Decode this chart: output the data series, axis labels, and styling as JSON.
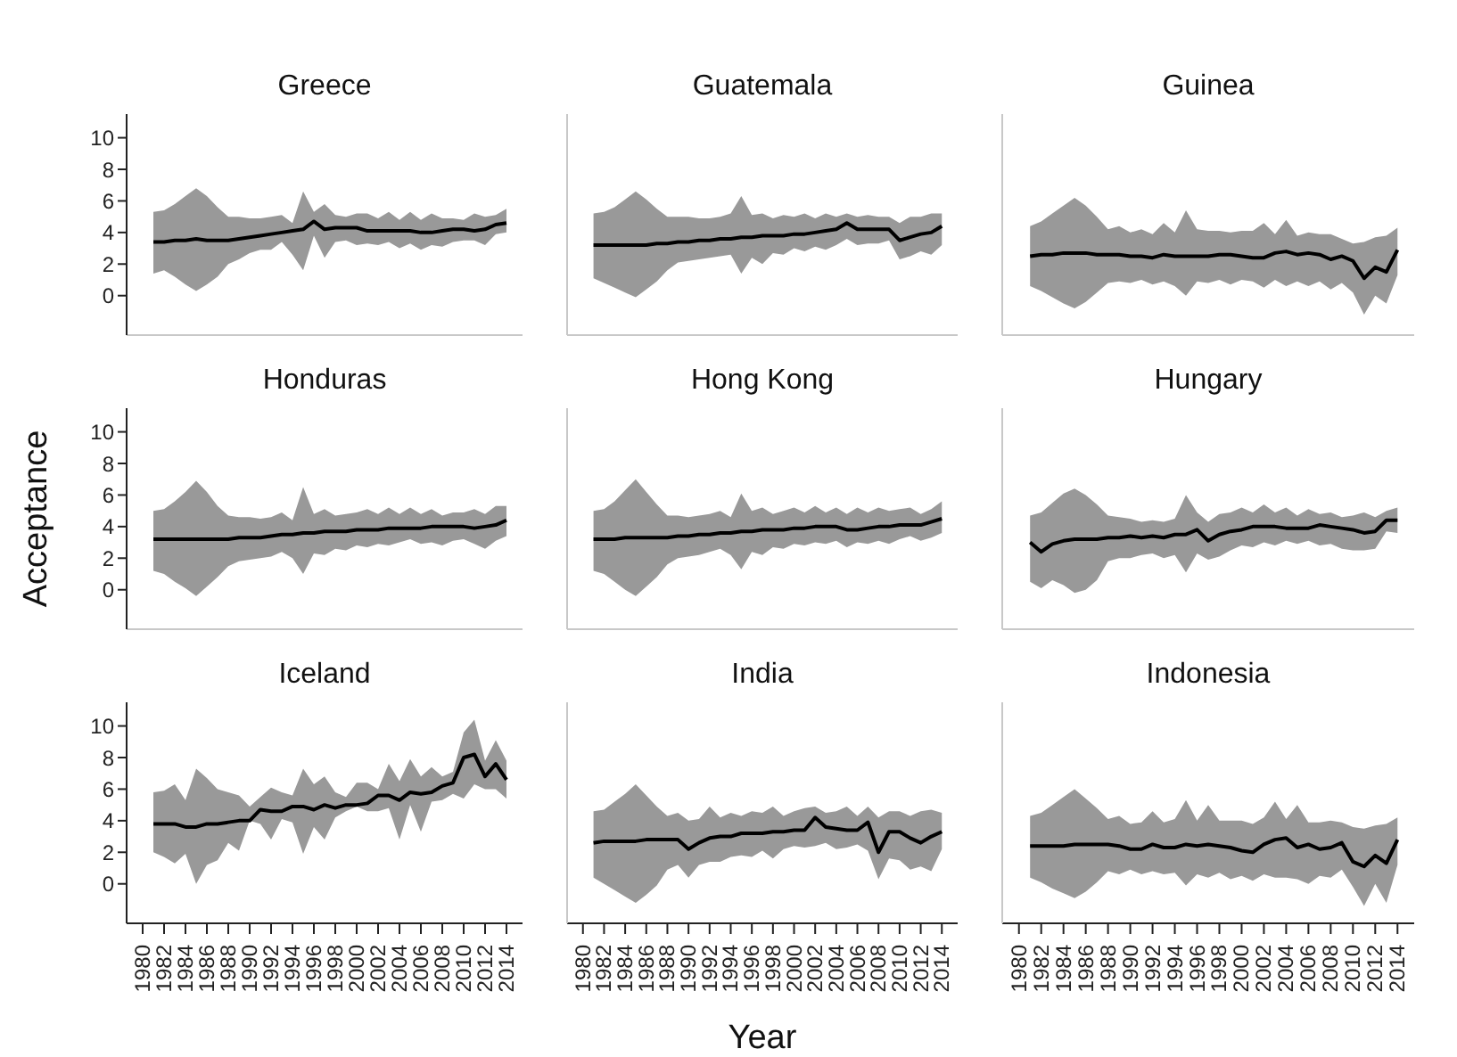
{
  "chart_data": [
    {
      "type": "line",
      "title": "Greece",
      "tick_labels": "y",
      "x": [
        1981,
        1982,
        1983,
        1984,
        1985,
        1986,
        1987,
        1988,
        1989,
        1990,
        1991,
        1992,
        1993,
        1994,
        1995,
        1996,
        1997,
        1998,
        1999,
        2000,
        2001,
        2002,
        2003,
        2004,
        2005,
        2006,
        2007,
        2008,
        2009,
        2010,
        2011,
        2012,
        2013,
        2014
      ],
      "xlim": [
        1978.5,
        2015.5
      ],
      "xticks": [
        1980,
        1982,
        1984,
        1986,
        1988,
        1990,
        1992,
        1994,
        1996,
        1998,
        2000,
        2002,
        2004,
        2006,
        2008,
        2010,
        2012,
        2014
      ],
      "ylim": [
        -2.5,
        11.5
      ],
      "yticks": [
        0,
        2,
        4,
        6,
        8,
        10
      ],
      "series": [
        {
          "color": "#000000",
          "values": [
            3.4,
            3.4,
            3.5,
            3.5,
            3.6,
            3.5,
            3.5,
            3.5,
            3.6,
            3.7,
            3.8,
            3.9,
            4.0,
            4.1,
            4.2,
            4.7,
            4.2,
            4.3,
            4.3,
            4.3,
            4.1,
            4.1,
            4.1,
            4.1,
            4.1,
            4.0,
            4.0,
            4.1,
            4.2,
            4.2,
            4.1,
            4.2,
            4.5,
            4.6
          ],
          "upper": [
            5.3,
            5.4,
            5.8,
            6.3,
            6.8,
            6.3,
            5.6,
            5.0,
            5.0,
            4.9,
            4.9,
            5.0,
            5.1,
            4.6,
            6.6,
            5.3,
            5.8,
            5.1,
            5.0,
            5.2,
            5.2,
            4.9,
            5.3,
            4.8,
            5.3,
            4.8,
            5.2,
            4.9,
            4.9,
            4.8,
            5.2,
            5.0,
            5.1,
            5.5
          ],
          "lower": [
            1.4,
            1.6,
            1.2,
            0.7,
            0.3,
            0.7,
            1.2,
            2.0,
            2.3,
            2.7,
            2.9,
            2.9,
            3.4,
            2.6,
            1.6,
            3.8,
            2.4,
            3.4,
            3.5,
            3.2,
            3.3,
            3.2,
            3.4,
            3.0,
            3.3,
            2.9,
            3.2,
            3.1,
            3.4,
            3.5,
            3.5,
            3.2,
            3.9,
            4.0
          ]
        }
      ]
    },
    {
      "type": "line",
      "title": "Guatemala",
      "tick_labels": false,
      "x": [
        1981,
        1982,
        1983,
        1984,
        1985,
        1986,
        1987,
        1988,
        1989,
        1990,
        1991,
        1992,
        1993,
        1994,
        1995,
        1996,
        1997,
        1998,
        1999,
        2000,
        2001,
        2002,
        2003,
        2004,
        2005,
        2006,
        2007,
        2008,
        2009,
        2010,
        2011,
        2012,
        2013,
        2014
      ],
      "xlim": [
        1978.5,
        2015.5
      ],
      "xticks": [
        1980,
        1982,
        1984,
        1986,
        1988,
        1990,
        1992,
        1994,
        1996,
        1998,
        2000,
        2002,
        2004,
        2006,
        2008,
        2010,
        2012,
        2014
      ],
      "ylim": [
        -2.5,
        11.5
      ],
      "yticks": [
        0,
        2,
        4,
        6,
        8,
        10
      ],
      "series": [
        {
          "color": "#000000",
          "values": [
            3.2,
            3.2,
            3.2,
            3.2,
            3.2,
            3.2,
            3.3,
            3.3,
            3.4,
            3.4,
            3.5,
            3.5,
            3.6,
            3.6,
            3.7,
            3.7,
            3.8,
            3.8,
            3.8,
            3.9,
            3.9,
            4.0,
            4.1,
            4.2,
            4.6,
            4.2,
            4.2,
            4.2,
            4.2,
            3.5,
            3.7,
            3.9,
            4.0,
            4.4
          ],
          "upper": [
            5.2,
            5.3,
            5.6,
            6.1,
            6.6,
            6.1,
            5.5,
            5.0,
            5.0,
            5.0,
            4.9,
            4.9,
            5.0,
            5.2,
            6.3,
            5.1,
            5.2,
            4.9,
            5.1,
            5.0,
            5.2,
            4.9,
            5.2,
            5.0,
            5.2,
            5.0,
            5.1,
            5.0,
            5.0,
            4.6,
            5.0,
            5.0,
            5.2,
            5.2
          ],
          "lower": [
            1.1,
            0.8,
            0.5,
            0.2,
            -0.1,
            0.4,
            0.9,
            1.6,
            2.1,
            2.2,
            2.3,
            2.4,
            2.5,
            2.6,
            1.4,
            2.4,
            2.0,
            2.7,
            2.6,
            3.0,
            2.8,
            3.1,
            2.9,
            3.2,
            3.6,
            3.2,
            3.3,
            3.3,
            3.5,
            2.3,
            2.5,
            2.8,
            2.6,
            3.2
          ]
        }
      ]
    },
    {
      "type": "line",
      "title": "Guinea",
      "tick_labels": false,
      "x": [
        1981,
        1982,
        1983,
        1984,
        1985,
        1986,
        1987,
        1988,
        1989,
        1990,
        1991,
        1992,
        1993,
        1994,
        1995,
        1996,
        1997,
        1998,
        1999,
        2000,
        2001,
        2002,
        2003,
        2004,
        2005,
        2006,
        2007,
        2008,
        2009,
        2010,
        2011,
        2012,
        2013,
        2014
      ],
      "xlim": [
        1978.5,
        2015.5
      ],
      "xticks": [
        1980,
        1982,
        1984,
        1986,
        1988,
        1990,
        1992,
        1994,
        1996,
        1998,
        2000,
        2002,
        2004,
        2006,
        2008,
        2010,
        2012,
        2014
      ],
      "ylim": [
        -2.5,
        11.5
      ],
      "yticks": [
        0,
        2,
        4,
        6,
        8,
        10
      ],
      "series": [
        {
          "color": "#000000",
          "values": [
            2.5,
            2.6,
            2.6,
            2.7,
            2.7,
            2.7,
            2.6,
            2.6,
            2.6,
            2.5,
            2.5,
            2.4,
            2.6,
            2.5,
            2.5,
            2.5,
            2.5,
            2.6,
            2.6,
            2.5,
            2.4,
            2.4,
            2.7,
            2.8,
            2.6,
            2.7,
            2.6,
            2.3,
            2.5,
            2.2,
            1.1,
            1.8,
            1.5,
            2.9
          ],
          "upper": [
            4.4,
            4.7,
            5.2,
            5.7,
            6.2,
            5.7,
            5.0,
            4.2,
            4.4,
            4.0,
            4.2,
            3.9,
            4.6,
            4.0,
            5.4,
            4.2,
            4.1,
            4.1,
            4.0,
            4.1,
            4.1,
            4.6,
            3.9,
            4.8,
            3.8,
            4.0,
            3.9,
            3.9,
            3.6,
            3.3,
            3.4,
            3.7,
            3.8,
            4.3
          ],
          "lower": [
            0.6,
            0.3,
            -0.1,
            -0.5,
            -0.8,
            -0.4,
            0.2,
            0.8,
            0.9,
            0.8,
            1.0,
            0.7,
            0.9,
            0.6,
            0.0,
            0.9,
            0.8,
            1.0,
            0.7,
            1.0,
            0.9,
            0.5,
            1.0,
            0.6,
            0.9,
            0.6,
            0.9,
            0.4,
            0.8,
            0.2,
            -1.2,
            0.0,
            -0.5,
            1.3
          ]
        }
      ]
    },
    {
      "type": "line",
      "title": "Honduras",
      "ylabel": "Acceptance",
      "tick_labels": "y",
      "x": [
        1981,
        1982,
        1983,
        1984,
        1985,
        1986,
        1987,
        1988,
        1989,
        1990,
        1991,
        1992,
        1993,
        1994,
        1995,
        1996,
        1997,
        1998,
        1999,
        2000,
        2001,
        2002,
        2003,
        2004,
        2005,
        2006,
        2007,
        2008,
        2009,
        2010,
        2011,
        2012,
        2013,
        2014
      ],
      "xlim": [
        1978.5,
        2015.5
      ],
      "xticks": [
        1980,
        1982,
        1984,
        1986,
        1988,
        1990,
        1992,
        1994,
        1996,
        1998,
        2000,
        2002,
        2004,
        2006,
        2008,
        2010,
        2012,
        2014
      ],
      "ylim": [
        -2.5,
        11.5
      ],
      "yticks": [
        0,
        2,
        4,
        6,
        8,
        10
      ],
      "series": [
        {
          "color": "#000000",
          "values": [
            3.2,
            3.2,
            3.2,
            3.2,
            3.2,
            3.2,
            3.2,
            3.2,
            3.3,
            3.3,
            3.3,
            3.4,
            3.5,
            3.5,
            3.6,
            3.6,
            3.7,
            3.7,
            3.7,
            3.8,
            3.8,
            3.8,
            3.9,
            3.9,
            3.9,
            3.9,
            4.0,
            4.0,
            4.0,
            4.0,
            3.9,
            4.0,
            4.1,
            4.4
          ],
          "upper": [
            5.0,
            5.1,
            5.6,
            6.2,
            6.9,
            6.2,
            5.3,
            4.7,
            4.6,
            4.6,
            4.5,
            4.6,
            4.9,
            4.4,
            6.5,
            4.8,
            5.1,
            4.7,
            4.8,
            4.9,
            5.1,
            4.8,
            5.2,
            4.8,
            5.2,
            4.8,
            5.1,
            4.7,
            4.9,
            4.9,
            5.1,
            4.8,
            5.3,
            5.3
          ],
          "lower": [
            1.2,
            1.0,
            0.5,
            0.1,
            -0.4,
            0.2,
            0.8,
            1.5,
            1.8,
            1.9,
            2.0,
            2.1,
            2.4,
            2.0,
            1.0,
            2.3,
            2.2,
            2.6,
            2.5,
            2.8,
            2.7,
            2.9,
            2.8,
            3.0,
            3.2,
            2.9,
            3.0,
            2.8,
            3.1,
            3.2,
            2.9,
            2.6,
            3.1,
            3.4
          ]
        }
      ]
    },
    {
      "type": "line",
      "title": "Hong Kong",
      "tick_labels": false,
      "x": [
        1981,
        1982,
        1983,
        1984,
        1985,
        1986,
        1987,
        1988,
        1989,
        1990,
        1991,
        1992,
        1993,
        1994,
        1995,
        1996,
        1997,
        1998,
        1999,
        2000,
        2001,
        2002,
        2003,
        2004,
        2005,
        2006,
        2007,
        2008,
        2009,
        2010,
        2011,
        2012,
        2013,
        2014
      ],
      "xlim": [
        1978.5,
        2015.5
      ],
      "xticks": [
        1980,
        1982,
        1984,
        1986,
        1988,
        1990,
        1992,
        1994,
        1996,
        1998,
        2000,
        2002,
        2004,
        2006,
        2008,
        2010,
        2012,
        2014
      ],
      "ylim": [
        -2.5,
        11.5
      ],
      "yticks": [
        0,
        2,
        4,
        6,
        8,
        10
      ],
      "series": [
        {
          "color": "#000000",
          "values": [
            3.2,
            3.2,
            3.2,
            3.3,
            3.3,
            3.3,
            3.3,
            3.3,
            3.4,
            3.4,
            3.5,
            3.5,
            3.6,
            3.6,
            3.7,
            3.7,
            3.8,
            3.8,
            3.8,
            3.9,
            3.9,
            4.0,
            4.0,
            4.0,
            3.8,
            3.8,
            3.9,
            4.0,
            4.0,
            4.1,
            4.1,
            4.1,
            4.3,
            4.5
          ],
          "upper": [
            5.0,
            5.1,
            5.6,
            6.3,
            7.0,
            6.2,
            5.4,
            4.7,
            4.7,
            4.6,
            4.7,
            4.8,
            5.0,
            4.6,
            6.1,
            5.0,
            5.2,
            4.8,
            5.0,
            5.2,
            4.9,
            5.3,
            4.9,
            5.2,
            4.8,
            5.2,
            4.9,
            5.2,
            5.0,
            5.1,
            5.2,
            4.8,
            5.1,
            5.6
          ],
          "lower": [
            1.2,
            1.0,
            0.5,
            0.0,
            -0.4,
            0.2,
            0.8,
            1.6,
            2.0,
            2.1,
            2.2,
            2.4,
            2.6,
            2.2,
            1.3,
            2.4,
            2.2,
            2.7,
            2.6,
            2.9,
            2.8,
            3.0,
            2.9,
            3.1,
            2.7,
            3.0,
            2.9,
            3.1,
            2.9,
            3.2,
            3.4,
            3.1,
            3.3,
            3.6
          ]
        }
      ]
    },
    {
      "type": "line",
      "title": "Hungary",
      "tick_labels": false,
      "x": [
        1981,
        1982,
        1983,
        1984,
        1985,
        1986,
        1987,
        1988,
        1989,
        1990,
        1991,
        1992,
        1993,
        1994,
        1995,
        1996,
        1997,
        1998,
        1999,
        2000,
        2001,
        2002,
        2003,
        2004,
        2005,
        2006,
        2007,
        2008,
        2009,
        2010,
        2011,
        2012,
        2013,
        2014
      ],
      "xlim": [
        1978.5,
        2015.5
      ],
      "xticks": [
        1980,
        1982,
        1984,
        1986,
        1988,
        1990,
        1992,
        1994,
        1996,
        1998,
        2000,
        2002,
        2004,
        2006,
        2008,
        2010,
        2012,
        2014
      ],
      "ylim": [
        -2.5,
        11.5
      ],
      "yticks": [
        0,
        2,
        4,
        6,
        8,
        10
      ],
      "series": [
        {
          "color": "#000000",
          "values": [
            3.0,
            2.4,
            2.9,
            3.1,
            3.2,
            3.2,
            3.2,
            3.3,
            3.3,
            3.4,
            3.3,
            3.4,
            3.3,
            3.5,
            3.5,
            3.8,
            3.1,
            3.5,
            3.7,
            3.8,
            4.0,
            4.0,
            4.0,
            3.9,
            3.9,
            3.9,
            4.1,
            4.0,
            3.9,
            3.8,
            3.6,
            3.7,
            4.4,
            4.4
          ],
          "upper": [
            4.7,
            4.9,
            5.5,
            6.1,
            6.4,
            6.0,
            5.4,
            4.7,
            4.6,
            4.5,
            4.3,
            4.4,
            4.3,
            4.5,
            6.0,
            4.9,
            4.3,
            4.8,
            4.9,
            5.2,
            4.9,
            5.4,
            4.9,
            5.2,
            4.7,
            5.1,
            4.8,
            4.9,
            4.6,
            4.7,
            4.9,
            4.6,
            5.0,
            5.2
          ],
          "lower": [
            0.5,
            0.1,
            0.6,
            0.3,
            -0.2,
            0.0,
            0.6,
            1.8,
            2.0,
            2.0,
            2.2,
            2.3,
            2.0,
            2.2,
            1.1,
            2.3,
            1.9,
            2.1,
            2.5,
            2.8,
            2.7,
            3.0,
            2.8,
            3.1,
            2.9,
            3.1,
            2.8,
            2.9,
            2.6,
            2.5,
            2.5,
            2.6,
            3.7,
            3.6
          ]
        }
      ]
    },
    {
      "type": "line",
      "title": "Iceland",
      "x": [
        1981,
        1982,
        1983,
        1984,
        1985,
        1986,
        1987,
        1988,
        1989,
        1990,
        1991,
        1992,
        1993,
        1994,
        1995,
        1996,
        1997,
        1998,
        1999,
        2000,
        2001,
        2002,
        2003,
        2004,
        2005,
        2006,
        2007,
        2008,
        2009,
        2010,
        2011,
        2012,
        2013,
        2014
      ],
      "xlim": [
        1978.5,
        2015.5
      ],
      "xticks": [
        1980,
        1982,
        1984,
        1986,
        1988,
        1990,
        1992,
        1994,
        1996,
        1998,
        2000,
        2002,
        2004,
        2006,
        2008,
        2010,
        2012,
        2014
      ],
      "ylim": [
        -2.5,
        11.5
      ],
      "yticks": [
        0,
        2,
        4,
        6,
        8,
        10
      ],
      "series": [
        {
          "color": "#000000",
          "values": [
            3.8,
            3.8,
            3.8,
            3.6,
            3.6,
            3.8,
            3.8,
            3.9,
            4.0,
            4.0,
            4.7,
            4.6,
            4.6,
            4.9,
            4.9,
            4.7,
            5.0,
            4.8,
            5.0,
            5.0,
            5.1,
            5.6,
            5.6,
            5.3,
            5.8,
            5.7,
            5.8,
            6.2,
            6.4,
            8.0,
            8.2,
            6.8,
            7.6,
            6.6
          ],
          "upper": [
            5.8,
            5.9,
            6.3,
            5.3,
            7.3,
            6.7,
            6.0,
            5.8,
            5.6,
            4.9,
            5.5,
            6.1,
            5.8,
            5.6,
            7.3,
            6.3,
            6.8,
            5.8,
            5.5,
            6.4,
            6.4,
            6.0,
            7.6,
            6.5,
            7.9,
            6.8,
            7.4,
            6.8,
            7.1,
            9.6,
            10.4,
            7.8,
            9.1,
            7.8
          ],
          "lower": [
            2.0,
            1.7,
            1.3,
            1.9,
            0.0,
            1.2,
            1.5,
            2.6,
            2.1,
            4.0,
            3.8,
            2.8,
            4.1,
            3.9,
            1.9,
            3.6,
            2.8,
            4.2,
            4.6,
            4.9,
            4.6,
            4.6,
            4.8,
            2.8,
            5.0,
            3.3,
            5.2,
            5.3,
            5.7,
            5.4,
            6.3,
            6.0,
            6.0,
            5.4
          ]
        }
      ]
    },
    {
      "type": "line",
      "title": "India",
      "xlabel": "Year",
      "tick_labels": "x",
      "x": [
        1981,
        1982,
        1983,
        1984,
        1985,
        1986,
        1987,
        1988,
        1989,
        1990,
        1991,
        1992,
        1993,
        1994,
        1995,
        1996,
        1997,
        1998,
        1999,
        2000,
        2001,
        2002,
        2003,
        2004,
        2005,
        2006,
        2007,
        2008,
        2009,
        2010,
        2011,
        2012,
        2013,
        2014
      ],
      "xlim": [
        1978.5,
        2015.5
      ],
      "xticks": [
        1980,
        1982,
        1984,
        1986,
        1988,
        1990,
        1992,
        1994,
        1996,
        1998,
        2000,
        2002,
        2004,
        2006,
        2008,
        2010,
        2012,
        2014
      ],
      "ylim": [
        -2.5,
        11.5
      ],
      "yticks": [
        0,
        2,
        4,
        6,
        8,
        10
      ],
      "series": [
        {
          "color": "#000000",
          "values": [
            2.6,
            2.7,
            2.7,
            2.7,
            2.7,
            2.8,
            2.8,
            2.8,
            2.8,
            2.2,
            2.6,
            2.9,
            3.0,
            3.0,
            3.2,
            3.2,
            3.2,
            3.3,
            3.3,
            3.4,
            3.4,
            4.2,
            3.6,
            3.5,
            3.4,
            3.4,
            3.9,
            2.0,
            3.3,
            3.3,
            2.9,
            2.6,
            3.0,
            3.3
          ],
          "upper": [
            4.6,
            4.7,
            5.2,
            5.7,
            6.3,
            5.6,
            4.9,
            4.3,
            4.5,
            4.0,
            4.1,
            4.9,
            4.2,
            4.5,
            4.3,
            4.6,
            4.5,
            4.9,
            4.3,
            4.6,
            4.8,
            4.9,
            4.5,
            4.6,
            4.9,
            4.3,
            4.9,
            4.2,
            4.6,
            4.6,
            4.3,
            4.6,
            4.7,
            4.5
          ],
          "lower": [
            0.4,
            0.0,
            -0.4,
            -0.8,
            -1.2,
            -0.7,
            -0.1,
            0.9,
            1.2,
            0.4,
            1.2,
            1.4,
            1.4,
            1.7,
            1.8,
            1.7,
            2.1,
            1.6,
            2.2,
            2.4,
            2.3,
            2.4,
            2.6,
            2.2,
            2.3,
            2.5,
            2.1,
            0.3,
            1.6,
            1.5,
            0.9,
            1.1,
            0.8,
            2.2
          ]
        }
      ]
    },
    {
      "type": "line",
      "title": "Indonesia",
      "tick_labels": "x",
      "x": [
        1981,
        1982,
        1983,
        1984,
        1985,
        1986,
        1987,
        1988,
        1989,
        1990,
        1991,
        1992,
        1993,
        1994,
        1995,
        1996,
        1997,
        1998,
        1999,
        2000,
        2001,
        2002,
        2003,
        2004,
        2005,
        2006,
        2007,
        2008,
        2009,
        2010,
        2011,
        2012,
        2013,
        2014
      ],
      "xlim": [
        1978.5,
        2015.5
      ],
      "xticks": [
        1980,
        1982,
        1984,
        1986,
        1988,
        1990,
        1992,
        1994,
        1996,
        1998,
        2000,
        2002,
        2004,
        2006,
        2008,
        2010,
        2012,
        2014
      ],
      "ylim": [
        -2.5,
        11.5
      ],
      "yticks": [
        0,
        2,
        4,
        6,
        8,
        10
      ],
      "series": [
        {
          "color": "#000000",
          "values": [
            2.4,
            2.4,
            2.4,
            2.4,
            2.5,
            2.5,
            2.5,
            2.5,
            2.4,
            2.2,
            2.2,
            2.5,
            2.3,
            2.3,
            2.5,
            2.4,
            2.5,
            2.4,
            2.3,
            2.1,
            2.0,
            2.5,
            2.8,
            2.9,
            2.3,
            2.5,
            2.2,
            2.3,
            2.6,
            1.4,
            1.1,
            1.8,
            1.3,
            2.8
          ],
          "upper": [
            4.3,
            4.5,
            5.0,
            5.5,
            6.0,
            5.4,
            4.8,
            4.1,
            4.3,
            3.8,
            3.9,
            4.6,
            3.9,
            4.1,
            5.3,
            4.0,
            5.0,
            4.0,
            4.0,
            4.0,
            3.8,
            4.2,
            5.2,
            4.1,
            5.0,
            3.9,
            3.9,
            4.0,
            3.9,
            3.6,
            3.5,
            3.7,
            3.8,
            4.2
          ],
          "lower": [
            0.4,
            0.1,
            -0.3,
            -0.6,
            -0.9,
            -0.5,
            0.1,
            0.8,
            0.6,
            0.9,
            0.6,
            0.8,
            0.6,
            0.7,
            -0.1,
            0.6,
            0.4,
            0.7,
            0.3,
            0.5,
            0.2,
            0.6,
            0.4,
            0.4,
            0.3,
            0.0,
            0.5,
            0.4,
            0.9,
            -0.2,
            -1.4,
            0.0,
            -1.2,
            1.2
          ]
        }
      ]
    }
  ]
}
